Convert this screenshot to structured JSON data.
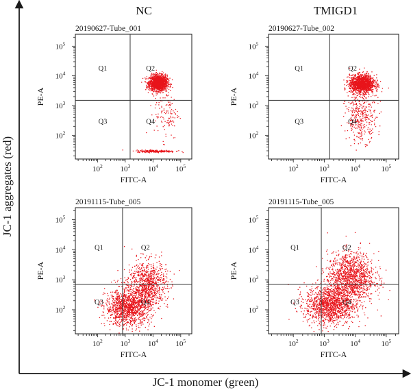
{
  "figure": {
    "column_titles": [
      "NC",
      "TMIGD1"
    ],
    "y_axis_title": "JC-1 aggregates (red)",
    "x_axis_title": "JC-1 monomer (green)"
  },
  "colors": {
    "dots": "#e8141b",
    "axis": "#1a1a1a",
    "gate": "#333333"
  },
  "chart_data": [
    {
      "type": "scatter",
      "title": "20190627-Tube_001",
      "xlabel": "FITC-A",
      "ylabel": "PE-A",
      "x_scale": "log",
      "y_scale": "log",
      "x_ticks": [
        100,
        1000,
        10000,
        100000
      ],
      "y_ticks": [
        100,
        1000,
        10000,
        100000
      ],
      "quadrant_labels": [
        "Q1",
        "Q2",
        "Q3",
        "Q4"
      ],
      "gate": {
        "x": 1500,
        "y": 1500
      },
      "clusters": [
        {
          "center": [
            15000,
            6000
          ],
          "spread": [
            0.16,
            0.13
          ],
          "count": 1600
        },
        {
          "center": [
            30000,
            600
          ],
          "spread": [
            0.22,
            0.45
          ],
          "count": 120
        },
        {
          "center": [
            12000,
            30
          ],
          "spread": [
            0.35,
            0.02
          ],
          "count": 220
        }
      ]
    },
    {
      "type": "scatter",
      "title": "20190627-Tube_002",
      "xlabel": "FITC-A",
      "ylabel": "PE-A",
      "x_scale": "log",
      "y_scale": "log",
      "x_ticks": [
        100,
        1000,
        10000,
        100000
      ],
      "y_ticks": [
        100,
        1000,
        10000,
        100000
      ],
      "quadrant_labels": [
        "Q1",
        "Q2",
        "Q3",
        "Q4"
      ],
      "gate": {
        "x": 1500,
        "y": 1500
      },
      "clusters": [
        {
          "center": [
            16000,
            5500
          ],
          "spread": [
            0.2,
            0.15
          ],
          "count": 1500
        },
        {
          "center": [
            15000,
            400
          ],
          "spread": [
            0.25,
            0.4
          ],
          "count": 350
        }
      ]
    },
    {
      "type": "scatter",
      "title": "20191115-Tube_005",
      "xlabel": "FITC-A",
      "ylabel": "PE-A",
      "x_scale": "log",
      "y_scale": "log",
      "x_ticks": [
        100,
        1000,
        10000,
        100000
      ],
      "y_ticks": [
        100,
        1000,
        10000,
        100000
      ],
      "quadrant_labels": [
        "Q1",
        "Q2",
        "Q3",
        "Q4"
      ],
      "gate": {
        "x": 800,
        "y": 700
      },
      "clusters": [
        {
          "center": [
            1200,
            120
          ],
          "spread": [
            0.4,
            0.3
          ],
          "count": 1200
        },
        {
          "center": [
            6000,
            700
          ],
          "spread": [
            0.35,
            0.4
          ],
          "count": 900
        }
      ]
    },
    {
      "type": "scatter",
      "title": "20191115-Tube_005",
      "xlabel": "FITC-A",
      "ylabel": "PE-A",
      "x_scale": "log",
      "y_scale": "log",
      "x_ticks": [
        100,
        1000,
        10000,
        100000
      ],
      "y_ticks": [
        100,
        1000,
        10000,
        100000
      ],
      "quadrant_labels": [
        "Q1",
        "Q2",
        "Q3",
        "Q4"
      ],
      "gate": {
        "x": 800,
        "y": 700
      },
      "clusters": [
        {
          "center": [
            1500,
            150
          ],
          "spread": [
            0.4,
            0.32
          ],
          "count": 1300
        },
        {
          "center": [
            7000,
            1200
          ],
          "spread": [
            0.38,
            0.42
          ],
          "count": 1300
        }
      ]
    }
  ]
}
